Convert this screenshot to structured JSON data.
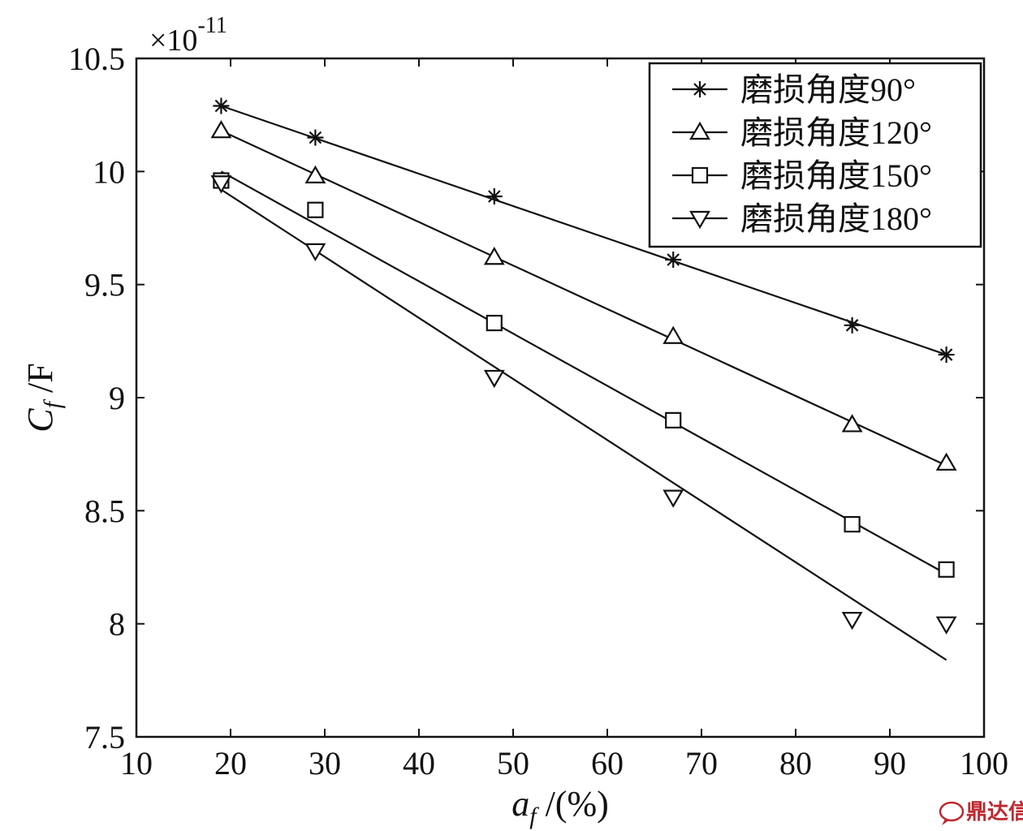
{
  "chart_data": {
    "type": "line",
    "xlabel": "a_f /(%)",
    "ylabel": "C_f /F",
    "y_multiplier": "×10^-11",
    "xlim": [
      10,
      100
    ],
    "ylim": [
      7.5,
      10.5
    ],
    "x_ticks": [
      "10",
      "20",
      "30",
      "40",
      "50",
      "60",
      "70",
      "80",
      "90",
      "100"
    ],
    "y_ticks": [
      "10.5",
      "10",
      "9.5",
      "9",
      "8.5",
      "8",
      "7.5"
    ],
    "legend_position": "top-right",
    "grid": false,
    "series": [
      {
        "name": "磨损角度90°",
        "marker": "star",
        "points": [
          [
            19,
            10.29
          ],
          [
            29,
            10.15
          ],
          [
            48,
            9.89
          ],
          [
            67,
            9.61
          ],
          [
            86,
            9.32
          ],
          [
            96,
            9.19
          ]
        ],
        "fit": [
          [
            19,
            10.29
          ],
          [
            96,
            9.19
          ]
        ]
      },
      {
        "name": "磨损角度120°",
        "marker": "triangle-up",
        "points": [
          [
            19,
            10.18
          ],
          [
            29,
            9.98
          ],
          [
            48,
            9.62
          ],
          [
            67,
            9.27
          ],
          [
            86,
            8.88
          ],
          [
            96,
            8.71
          ]
        ],
        "fit": [
          [
            19,
            10.18
          ],
          [
            96,
            8.7
          ]
        ]
      },
      {
        "name": "磨损角度150°",
        "marker": "square",
        "points": [
          [
            19,
            9.96
          ],
          [
            29,
            9.83
          ],
          [
            48,
            9.33
          ],
          [
            67,
            8.9
          ],
          [
            86,
            8.44
          ],
          [
            96,
            8.24
          ]
        ],
        "fit": [
          [
            19,
            10.0
          ],
          [
            96,
            8.22
          ]
        ]
      },
      {
        "name": "磨损角度180°",
        "marker": "triangle-down",
        "points": [
          [
            19,
            9.95
          ],
          [
            29,
            9.65
          ],
          [
            48,
            9.09
          ],
          [
            67,
            8.56
          ],
          [
            86,
            8.02
          ],
          [
            96,
            8.0
          ]
        ],
        "fit": [
          [
            19,
            9.92
          ],
          [
            96,
            7.84
          ]
        ]
      }
    ]
  },
  "watermark": {
    "icon": "speech-bubble-icon",
    "text": "鼎达信",
    "color": "#c0282d"
  }
}
